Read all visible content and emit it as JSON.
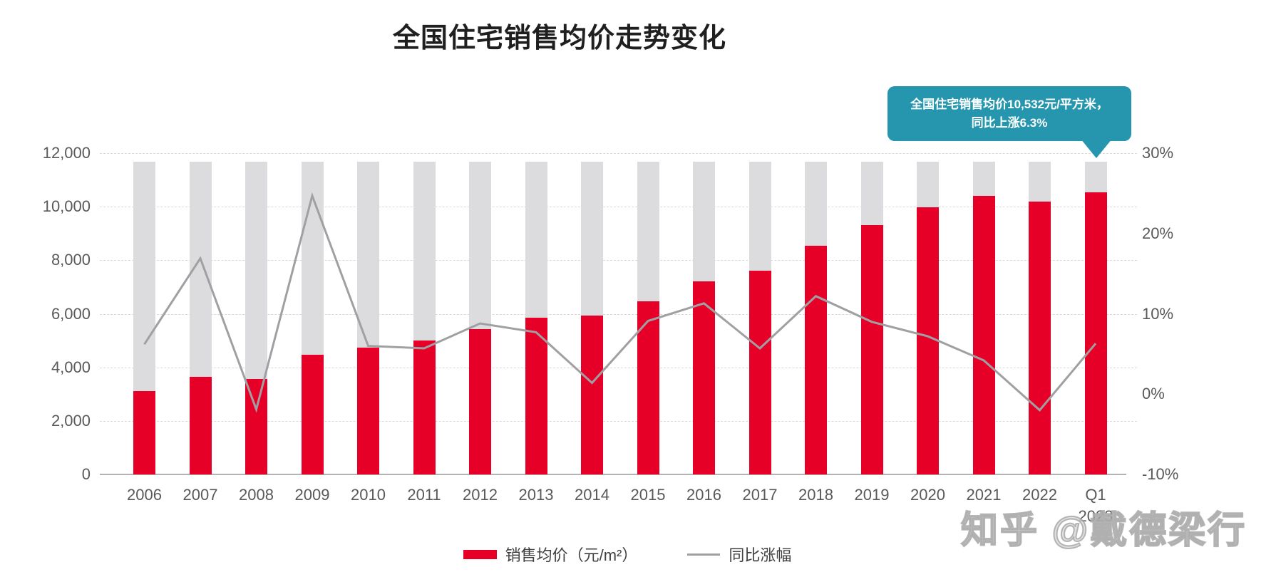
{
  "title": "全国住宅销售均价走势变化",
  "tooltip": {
    "line1": "全国住宅销售均价10,532元/平方米，",
    "line2": "同比上涨6.3%"
  },
  "legend": {
    "bar_label": "销售均价（元/m²）",
    "line_label": "同比涨幅"
  },
  "watermark": "知乎 @戴德梁行",
  "axes": {
    "left_ticks": [
      {
        "label": "0",
        "value": 0
      },
      {
        "label": "2,000",
        "value": 2000
      },
      {
        "label": "4,000",
        "value": 4000
      },
      {
        "label": "6,000",
        "value": 6000
      },
      {
        "label": "8,000",
        "value": 8000
      },
      {
        "label": "10,000",
        "value": 10000
      },
      {
        "label": "12,000",
        "value": 12000
      }
    ],
    "right_ticks": [
      {
        "label": "30%",
        "value": 30
      },
      {
        "label": "20%",
        "value": 20
      },
      {
        "label": "10%",
        "value": 10
      },
      {
        "label": "0%",
        "value": 0
      },
      {
        "label": "-10%",
        "value": -10
      }
    ]
  },
  "chart_data": {
    "type": "bar+line",
    "categories": [
      "2006",
      "2007",
      "2008",
      "2009",
      "2010",
      "2011",
      "2012",
      "2013",
      "2014",
      "2015",
      "2016",
      "2017",
      "2018",
      "2019",
      "2020",
      "2021",
      "2022",
      "Q1"
    ],
    "last_category_sublabel": "2023",
    "series": [
      {
        "name": "销售均价（元/m²）",
        "type": "bar",
        "axis": "left",
        "values": [
          3119,
          3645,
          3576,
          4459,
          4725,
          4993,
          5430,
          5850,
          5933,
          6473,
          7203,
          7614,
          8544,
          9310,
          9980,
          10396,
          10185,
          10532
        ]
      },
      {
        "name": "同比涨幅",
        "type": "line",
        "axis": "right",
        "unit": "%",
        "values": [
          6.2,
          16.9,
          -1.9,
          24.7,
          6.0,
          5.7,
          8.8,
          7.7,
          1.4,
          9.1,
          11.3,
          5.7,
          12.2,
          9.0,
          7.2,
          4.2,
          -2.0,
          6.3
        ]
      }
    ],
    "y_left": {
      "min": 0,
      "max": 12000
    },
    "y_right": {
      "min": -10,
      "max": 30
    },
    "background_track_value": 11700,
    "grid": "horizontal dashed at left-axis ticks",
    "legend_position": "bottom-center"
  },
  "colors": {
    "bar": "#e60028",
    "track": "#dcdcde",
    "line": "#a0a0a2",
    "tooltip_bg": "#2596ad",
    "axis_text": "#595959",
    "grid": "#d9d9d9",
    "baseline": "#b3b3b3",
    "title_text": "#1f1f1f",
    "legend_text": "#404040"
  }
}
